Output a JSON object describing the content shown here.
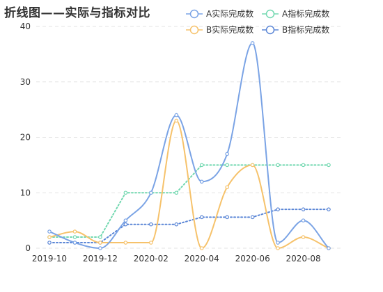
{
  "chart_data": {
    "type": "line",
    "title": "折线图——实际与指标对比",
    "x": [
      "2019-10",
      "2019-11",
      "2019-12",
      "2020-01",
      "2020-02",
      "2020-03",
      "2020-04",
      "2020-05",
      "2020-06",
      "2020-07",
      "2020-08",
      "2020-09"
    ],
    "x_tick_labels": [
      "2019-10",
      "2019-12",
      "2020-02",
      "2020-04",
      "2020-06",
      "2020-08"
    ],
    "ylim": [
      0,
      40
    ],
    "y_ticks": [
      0,
      10,
      20,
      30,
      40
    ],
    "grid": "horizontal-dashed",
    "legend_placement": "top-right",
    "series": [
      {
        "name": "A实际完成数",
        "color": "#7aa3e5",
        "style": "solid-smooth",
        "values": [
          3,
          1,
          0,
          5,
          10,
          24,
          12,
          17,
          37,
          1,
          5,
          0
        ]
      },
      {
        "name": "A指标完成数",
        "color": "#72d8b0",
        "style": "dotted",
        "values": [
          2,
          2,
          2,
          10,
          10,
          10,
          15,
          15,
          15,
          15,
          15,
          15
        ]
      },
      {
        "name": "B实际完成数",
        "color": "#f6c26b",
        "style": "solid-smooth",
        "values": [
          2,
          3,
          1,
          1,
          1,
          23,
          0,
          11,
          15,
          0,
          2,
          0
        ]
      },
      {
        "name": "B指标完成数",
        "color": "#5b86d6",
        "style": "dotted",
        "values": [
          1,
          1,
          1,
          4.3,
          4.3,
          4.3,
          5.6,
          5.6,
          5.6,
          7,
          7,
          7
        ]
      }
    ]
  }
}
